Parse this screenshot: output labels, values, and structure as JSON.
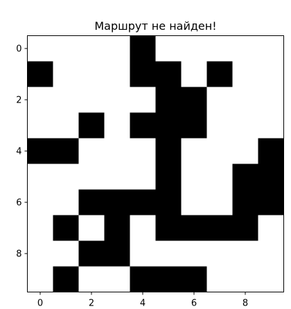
{
  "chart_data": {
    "type": "heatmap",
    "title": "Маршрут не найден!",
    "xlabel": "",
    "ylabel": "",
    "rows": 10,
    "cols": 10,
    "grid": false,
    "colormap": {
      "0": "#ffffff",
      "1": "#000000"
    },
    "x_ticks": [
      "0",
      "2",
      "4",
      "6",
      "8"
    ],
    "y_ticks": [
      "0",
      "2",
      "4",
      "6",
      "8"
    ],
    "x_tick_values": [
      0,
      2,
      4,
      6,
      8
    ],
    "y_tick_values": [
      0,
      2,
      4,
      6,
      8
    ],
    "values": [
      [
        0,
        0,
        0,
        0,
        1,
        0,
        0,
        0,
        0,
        0
      ],
      [
        1,
        0,
        0,
        0,
        1,
        1,
        0,
        1,
        0,
        0
      ],
      [
        0,
        0,
        0,
        0,
        0,
        1,
        1,
        0,
        0,
        0
      ],
      [
        0,
        0,
        1,
        0,
        1,
        1,
        1,
        0,
        0,
        0
      ],
      [
        1,
        1,
        0,
        0,
        0,
        1,
        0,
        0,
        0,
        1
      ],
      [
        0,
        0,
        0,
        0,
        0,
        1,
        0,
        0,
        1,
        1
      ],
      [
        0,
        0,
        1,
        1,
        1,
        1,
        0,
        0,
        1,
        1
      ],
      [
        0,
        1,
        0,
        1,
        0,
        1,
        1,
        1,
        1,
        0
      ],
      [
        0,
        0,
        1,
        1,
        0,
        0,
        0,
        0,
        0,
        0
      ],
      [
        0,
        1,
        0,
        0,
        1,
        1,
        1,
        0,
        0,
        0
      ]
    ]
  }
}
